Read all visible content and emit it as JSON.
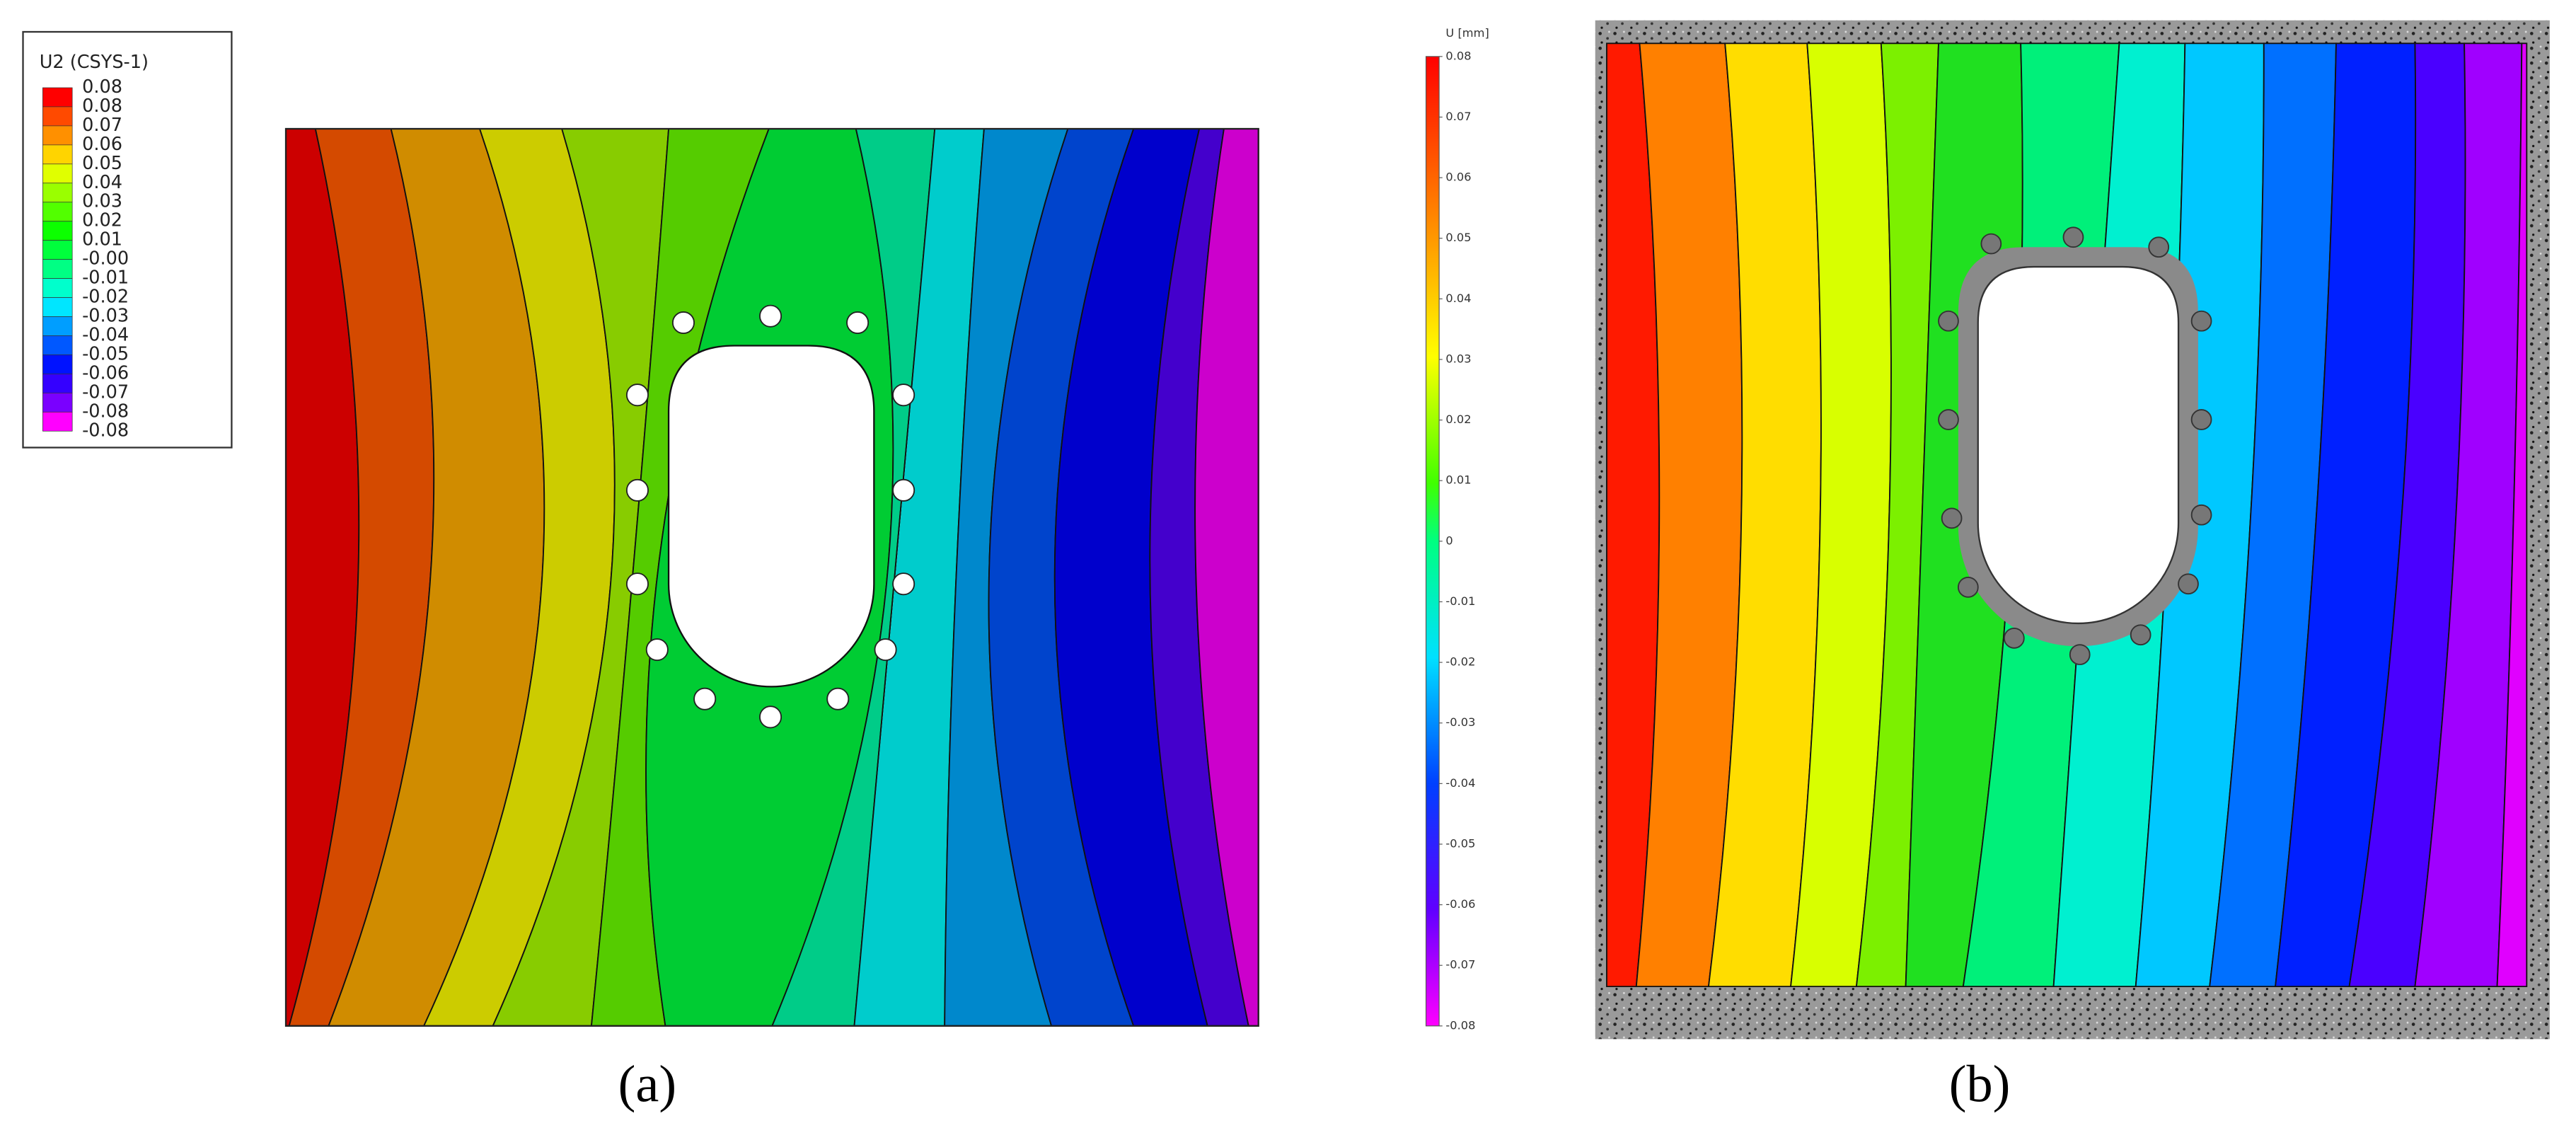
{
  "figure": {
    "panel_a": {
      "legend": {
        "title": "U2 (CSYS-1)",
        "labels": [
          "0.08",
          "0.08",
          "0.07",
          "0.06",
          "0.05",
          "0.04",
          "0.03",
          "0.02",
          "0.01",
          "-0.00",
          "-0.01",
          "-0.02",
          "-0.03",
          "-0.04",
          "-0.05",
          "-0.06",
          "-0.07",
          "-0.08",
          "-0.08"
        ]
      },
      "caption": "(a)"
    },
    "panel_b": {
      "colorbar": {
        "title": "U [mm]",
        "labels": [
          "0.08",
          "0.07",
          "0.06",
          "0.05",
          "0.04",
          "0.03",
          "0.02",
          "0.01",
          "0",
          "-0.01",
          "-0.02",
          "-0.03",
          "-0.04",
          "-0.05",
          "-0.06",
          "-0.07",
          "-0.08"
        ]
      },
      "caption": "(b)"
    }
  }
}
